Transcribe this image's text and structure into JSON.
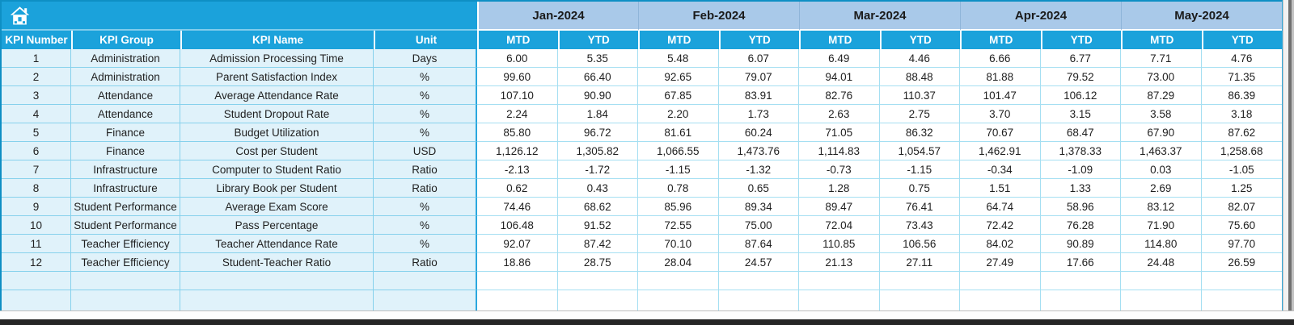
{
  "colors": {
    "accent_cyan": "#1ba2db",
    "month_header_blue": "#a9c9e9",
    "left_block_fill": "#e0f2fa",
    "grid_line": "#a5dff2",
    "bottom_bar": "#262626"
  },
  "table": {
    "column_headers": [
      "KPI Number",
      "KPI Group",
      "KPI Name",
      "Unit"
    ],
    "months": [
      "Jan-2024",
      "Feb-2024",
      "Mar-2024",
      "Apr-2024",
      "May-2024"
    ],
    "period_labels": [
      "MTD",
      "YTD"
    ],
    "rows": [
      {
        "kpi_number": "1",
        "kpi_group": "Administration",
        "kpi_name": "Admission Processing Time",
        "unit": "Days",
        "values": [
          "6.00",
          "5.35",
          "5.48",
          "6.07",
          "6.49",
          "4.46",
          "6.66",
          "6.77",
          "7.71",
          "4.76"
        ]
      },
      {
        "kpi_number": "2",
        "kpi_group": "Administration",
        "kpi_name": "Parent Satisfaction Index",
        "unit": "%",
        "values": [
          "99.60",
          "66.40",
          "92.65",
          "79.07",
          "94.01",
          "88.48",
          "81.88",
          "79.52",
          "73.00",
          "71.35"
        ]
      },
      {
        "kpi_number": "3",
        "kpi_group": "Attendance",
        "kpi_name": "Average Attendance Rate",
        "unit": "%",
        "values": [
          "107.10",
          "90.90",
          "67.85",
          "83.91",
          "82.76",
          "110.37",
          "101.47",
          "106.12",
          "87.29",
          "86.39"
        ]
      },
      {
        "kpi_number": "4",
        "kpi_group": "Attendance",
        "kpi_name": "Student Dropout Rate",
        "unit": "%",
        "values": [
          "2.24",
          "1.84",
          "2.20",
          "1.73",
          "2.63",
          "2.75",
          "3.70",
          "3.15",
          "3.58",
          "3.18"
        ]
      },
      {
        "kpi_number": "5",
        "kpi_group": "Finance",
        "kpi_name": "Budget Utilization",
        "unit": "%",
        "values": [
          "85.80",
          "96.72",
          "81.61",
          "60.24",
          "71.05",
          "86.32",
          "70.67",
          "68.47",
          "67.90",
          "87.62"
        ]
      },
      {
        "kpi_number": "6",
        "kpi_group": "Finance",
        "kpi_name": "Cost per Student",
        "unit": "USD",
        "values": [
          "1,126.12",
          "1,305.82",
          "1,066.55",
          "1,473.76",
          "1,114.83",
          "1,054.57",
          "1,462.91",
          "1,378.33",
          "1,463.37",
          "1,258.68"
        ]
      },
      {
        "kpi_number": "7",
        "kpi_group": "Infrastructure",
        "kpi_name": "Computer to Student Ratio",
        "unit": "Ratio",
        "values": [
          "-2.13",
          "-1.72",
          "-1.15",
          "-1.32",
          "-0.73",
          "-1.15",
          "-0.34",
          "-1.09",
          "0.03",
          "-1.05"
        ]
      },
      {
        "kpi_number": "8",
        "kpi_group": "Infrastructure",
        "kpi_name": "Library Book per Student",
        "unit": "Ratio",
        "values": [
          "0.62",
          "0.43",
          "0.78",
          "0.65",
          "1.28",
          "0.75",
          "1.51",
          "1.33",
          "2.69",
          "1.25"
        ]
      },
      {
        "kpi_number": "9",
        "kpi_group": "Student Performance",
        "kpi_name": "Average Exam Score",
        "unit": "%",
        "values": [
          "74.46",
          "68.62",
          "85.96",
          "89.34",
          "89.47",
          "76.41",
          "64.74",
          "58.96",
          "83.12",
          "82.07"
        ]
      },
      {
        "kpi_number": "10",
        "kpi_group": "Student Performance",
        "kpi_name": "Pass Percentage",
        "unit": "%",
        "values": [
          "106.48",
          "91.52",
          "72.55",
          "75.00",
          "72.04",
          "73.43",
          "72.42",
          "76.28",
          "71.90",
          "75.60"
        ]
      },
      {
        "kpi_number": "11",
        "kpi_group": "Teacher Efficiency",
        "kpi_name": "Teacher Attendance Rate",
        "unit": "%",
        "values": [
          "92.07",
          "87.42",
          "70.10",
          "87.64",
          "110.85",
          "106.56",
          "84.02",
          "90.89",
          "114.80",
          "97.70"
        ]
      },
      {
        "kpi_number": "12",
        "kpi_group": "Teacher Efficiency",
        "kpi_name": "Student-Teacher Ratio",
        "unit": "Ratio",
        "values": [
          "18.86",
          "28.75",
          "28.04",
          "24.57",
          "21.13",
          "27.11",
          "27.49",
          "17.66",
          "24.48",
          "26.59"
        ]
      }
    ],
    "empty_row_count": 2
  }
}
